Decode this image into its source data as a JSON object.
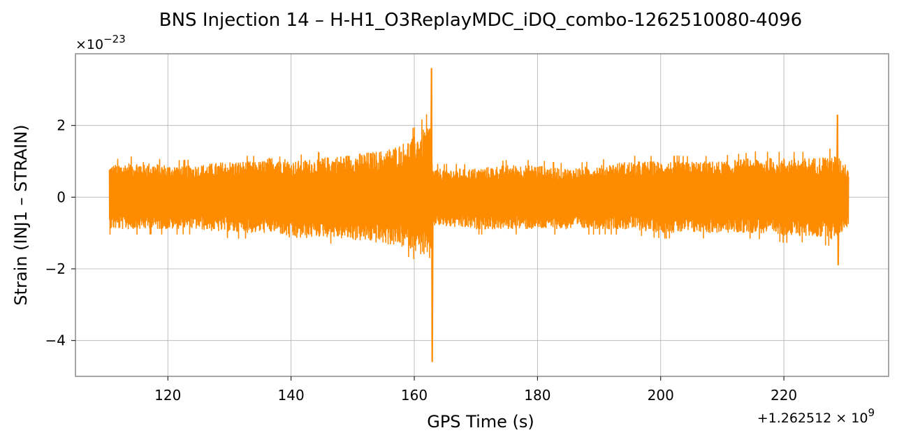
{
  "chart_data": {
    "type": "line",
    "title": "BNS Injection 14 – H-H1_O3ReplayMDC_iDQ_combo-1262510080-4096",
    "xlabel": "GPS Time (s)",
    "ylabel": "Strain (INJ1 – STRAIN)",
    "x_offset_label": "+1.262512 × 10",
    "x_offset_exp": "9",
    "y_scale_label": "×10",
    "y_scale_exp": "−23",
    "xlim": [
      105,
      237
    ],
    "ylim": [
      -5,
      4
    ],
    "xticks": [
      120,
      140,
      160,
      180,
      200,
      220
    ],
    "xtick_labels": [
      "120",
      "140",
      "160",
      "180",
      "200",
      "220"
    ],
    "yticks": [
      -4,
      -2,
      0,
      2
    ],
    "ytick_labels": [
      "−4",
      "−2",
      "0",
      "2"
    ],
    "grid": true,
    "series": [
      {
        "color": "#ff8c00",
        "envelope": [
          {
            "x": 110.5,
            "upper": 0.9,
            "lower": -0.9
          },
          {
            "x": 115,
            "upper": 1.0,
            "lower": -0.9
          },
          {
            "x": 120,
            "upper": 0.9,
            "lower": -0.9
          },
          {
            "x": 125,
            "upper": 0.9,
            "lower": -0.9
          },
          {
            "x": 130,
            "upper": 1.0,
            "lower": -1.0
          },
          {
            "x": 135,
            "upper": 1.0,
            "lower": -1.0
          },
          {
            "x": 138,
            "upper": 1.2,
            "lower": -1.0
          },
          {
            "x": 140,
            "upper": 1.0,
            "lower": -1.2
          },
          {
            "x": 145,
            "upper": 1.1,
            "lower": -1.1
          },
          {
            "x": 150,
            "upper": 1.2,
            "lower": -1.2
          },
          {
            "x": 155,
            "upper": 1.3,
            "lower": -1.3
          },
          {
            "x": 158,
            "upper": 1.5,
            "lower": -1.4
          },
          {
            "x": 160,
            "upper": 1.7,
            "lower": -1.5
          },
          {
            "x": 162,
            "upper": 2.0,
            "lower": -1.7
          },
          {
            "x": 162.5,
            "upper": 2.1,
            "lower": -2.0
          },
          {
            "x": 163,
            "upper": 0.8,
            "lower": -0.8
          },
          {
            "x": 170,
            "upper": 0.8,
            "lower": -0.9
          },
          {
            "x": 175,
            "upper": 0.9,
            "lower": -0.9
          },
          {
            "x": 180,
            "upper": 0.9,
            "lower": -0.9
          },
          {
            "x": 185,
            "upper": 0.8,
            "lower": -0.9
          },
          {
            "x": 190,
            "upper": 0.9,
            "lower": -0.9
          },
          {
            "x": 195,
            "upper": 1.0,
            "lower": -0.9
          },
          {
            "x": 200,
            "upper": 1.0,
            "lower": -1.0
          },
          {
            "x": 205,
            "upper": 1.0,
            "lower": -1.0
          },
          {
            "x": 210,
            "upper": 1.0,
            "lower": -1.0
          },
          {
            "x": 215,
            "upper": 1.1,
            "lower": -1.0
          },
          {
            "x": 220,
            "upper": 1.1,
            "lower": -1.1
          },
          {
            "x": 225,
            "upper": 1.1,
            "lower": -1.1
          },
          {
            "x": 228,
            "upper": 1.2,
            "lower": -1.2
          },
          {
            "x": 230.5,
            "upper": 0.9,
            "lower": -0.8
          }
        ],
        "spikes": [
          {
            "x": 162.8,
            "upper": 3.6,
            "lower": -4.6
          },
          {
            "x": 228.7,
            "upper": 2.3,
            "lower": -1.9
          }
        ]
      }
    ]
  }
}
